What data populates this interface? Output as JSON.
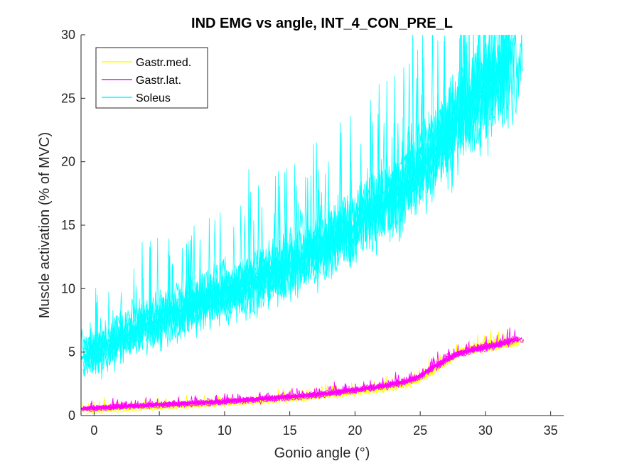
{
  "chart_data": {
    "type": "line",
    "title": "IND EMG vs angle, INT_4_CON_PRE_L",
    "xlabel": "Gonio angle (°)",
    "ylabel": "Muscle activation (% of MVC)",
    "xlim": [
      -1,
      36
    ],
    "ylim": [
      0,
      30
    ],
    "xticks": [
      0,
      5,
      10,
      15,
      20,
      25,
      30,
      35
    ],
    "xtick_labels": [
      "0",
      "5",
      "10",
      "15",
      "20",
      "25",
      "30",
      "35"
    ],
    "yticks": [
      0,
      5,
      10,
      15,
      20,
      25,
      30
    ],
    "ytick_labels": [
      "0",
      "5",
      "10",
      "15",
      "20",
      "25",
      "30"
    ],
    "legend_position": "top-left",
    "grid": false,
    "series": [
      {
        "name": "Gastr.med.",
        "color": "#ffff00",
        "mean": {
          "x": [
            -1,
            0,
            2,
            4,
            6,
            8,
            10,
            12,
            14,
            16,
            18,
            20,
            22,
            24,
            25,
            26,
            27,
            28,
            29,
            30,
            31,
            32,
            33
          ],
          "y": [
            0.5,
            0.55,
            0.65,
            0.75,
            0.85,
            0.95,
            1.05,
            1.2,
            1.35,
            1.5,
            1.7,
            1.95,
            2.2,
            2.6,
            3.0,
            3.6,
            4.3,
            5.0,
            5.3,
            5.5,
            5.6,
            5.8,
            6.0
          ]
        },
        "spread": 0.45
      },
      {
        "name": "Gastr.lat.",
        "color": "#ff00ff",
        "mean": {
          "x": [
            -1,
            0,
            2,
            4,
            6,
            8,
            10,
            12,
            14,
            16,
            18,
            20,
            22,
            24,
            25,
            26,
            27,
            28,
            29,
            30,
            31,
            32,
            33
          ],
          "y": [
            0.55,
            0.6,
            0.7,
            0.8,
            0.9,
            1.0,
            1.1,
            1.25,
            1.4,
            1.55,
            1.75,
            2.0,
            2.3,
            2.7,
            3.1,
            3.8,
            4.4,
            4.9,
            5.2,
            5.4,
            5.6,
            5.9,
            6.2
          ]
        },
        "spread": 0.4
      },
      {
        "name": "Soleus",
        "color": "#00ffff",
        "mean": {
          "x": [
            -1,
            0,
            2,
            4,
            6,
            8,
            10,
            12,
            14,
            16,
            18,
            20,
            22,
            24,
            26,
            28,
            30,
            31,
            32,
            33
          ],
          "y": [
            4.5,
            5.0,
            6.1,
            7.2,
            8.0,
            8.8,
            9.8,
            10.4,
            11.4,
            12.4,
            13.6,
            15.0,
            16.5,
            18.3,
            20.7,
            23.6,
            26.0,
            27.0,
            27.8,
            28.6
          ]
        },
        "spread": 2.4
      }
    ]
  }
}
